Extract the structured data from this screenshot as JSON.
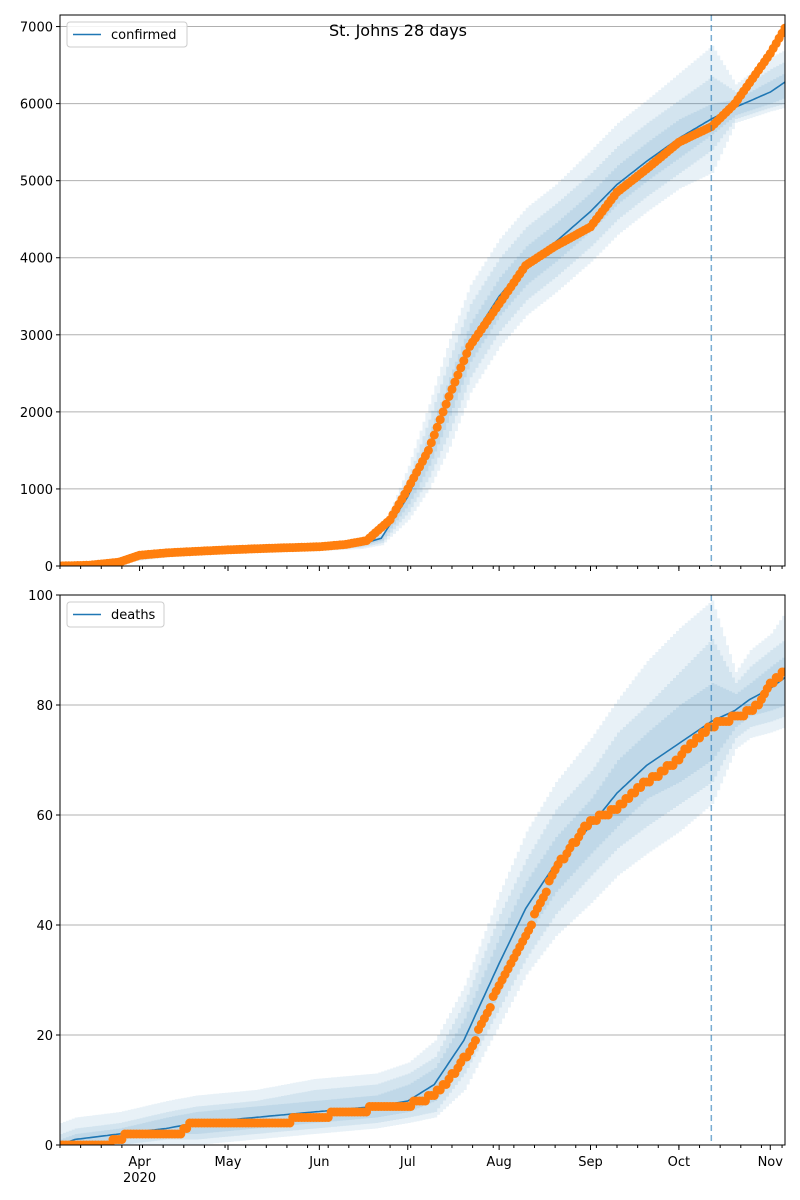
{
  "chart_data": [
    {
      "type": "line",
      "title": "St. Johns 28 days",
      "legend": {
        "entries": [
          "confirmed"
        ],
        "placement": "top-left"
      },
      "xlim": [
        "2020-03-05",
        "2020-11-06"
      ],
      "ylim": [
        0,
        7150
      ],
      "yticks": [
        0,
        1000,
        2000,
        3000,
        4000,
        5000,
        6000,
        7000
      ],
      "grid": "horizontal",
      "colors": {
        "model": "#1f77b4",
        "observed": "#ff7f0e",
        "band": "#1f77b4",
        "forecast_line": "#1f77b4"
      },
      "forecast_start": "2020-10-12",
      "model": {
        "x": [
          "2020-03-05",
          "2020-03-20",
          "2020-04-01",
          "2020-04-15",
          "2020-05-01",
          "2020-05-15",
          "2020-06-01",
          "2020-06-15",
          "2020-06-22",
          "2020-07-01",
          "2020-07-08",
          "2020-07-15",
          "2020-07-22",
          "2020-08-01",
          "2020-08-10",
          "2020-08-20",
          "2020-09-01",
          "2020-09-10",
          "2020-09-20",
          "2020-10-01",
          "2020-10-12",
          "2020-10-20",
          "2020-11-01",
          "2020-11-06"
        ],
        "y": [
          0,
          20,
          100,
          180,
          200,
          220,
          240,
          280,
          360,
          900,
          1500,
          2200,
          2900,
          3500,
          3900,
          4200,
          4600,
          4950,
          5250,
          5550,
          5800,
          5950,
          6150,
          6280
        ],
        "band50": [
          [
            0,
            0
          ],
          [
            15,
            25
          ],
          [
            90,
            110
          ],
          [
            165,
            195
          ],
          [
            185,
            215
          ],
          [
            205,
            235
          ],
          [
            225,
            255
          ],
          [
            260,
            300
          ],
          [
            330,
            390
          ],
          [
            800,
            1000
          ],
          [
            1300,
            1700
          ],
          [
            1950,
            2450
          ],
          [
            2650,
            3150
          ],
          [
            3250,
            3750
          ],
          [
            3650,
            4150
          ],
          [
            3950,
            4450
          ],
          [
            4350,
            4850
          ],
          [
            4700,
            5200
          ],
          [
            5000,
            5500
          ],
          [
            5300,
            5800
          ],
          [
            5600,
            6000
          ],
          [
            5850,
            6050
          ],
          [
            6000,
            6300
          ],
          [
            6080,
            6400
          ]
        ],
        "band80": [
          [
            0,
            0
          ],
          [
            10,
            30
          ],
          [
            80,
            120
          ],
          [
            150,
            210
          ],
          [
            170,
            230
          ],
          [
            190,
            250
          ],
          [
            210,
            270
          ],
          [
            240,
            320
          ],
          [
            300,
            420
          ],
          [
            700,
            1150
          ],
          [
            1150,
            1900
          ],
          [
            1750,
            2700
          ],
          [
            2450,
            3400
          ],
          [
            3050,
            4000
          ],
          [
            3450,
            4400
          ],
          [
            3750,
            4700
          ],
          [
            4150,
            5100
          ],
          [
            4500,
            5450
          ],
          [
            4800,
            5750
          ],
          [
            5100,
            6050
          ],
          [
            5400,
            6350
          ],
          [
            5800,
            6150
          ],
          [
            5950,
            6450
          ],
          [
            6000,
            6550
          ]
        ],
        "band95": [
          [
            0,
            0
          ],
          [
            5,
            35
          ],
          [
            70,
            130
          ],
          [
            135,
            225
          ],
          [
            155,
            245
          ],
          [
            175,
            265
          ],
          [
            195,
            285
          ],
          [
            220,
            340
          ],
          [
            270,
            450
          ],
          [
            600,
            1300
          ],
          [
            1000,
            2100
          ],
          [
            1550,
            2950
          ],
          [
            2250,
            3650
          ],
          [
            2850,
            4250
          ],
          [
            3250,
            4650
          ],
          [
            3550,
            4950
          ],
          [
            3950,
            5400
          ],
          [
            4300,
            5750
          ],
          [
            4600,
            6050
          ],
          [
            4900,
            6400
          ],
          [
            5100,
            6750
          ],
          [
            5750,
            6250
          ],
          [
            5900,
            6600
          ],
          [
            5950,
            6700
          ]
        ]
      },
      "observed": {
        "x": [
          "2020-03-05",
          "2020-03-15",
          "2020-03-25",
          "2020-04-01",
          "2020-04-10",
          "2020-04-20",
          "2020-05-01",
          "2020-05-15",
          "2020-06-01",
          "2020-06-10",
          "2020-06-17",
          "2020-06-25",
          "2020-07-01",
          "2020-07-08",
          "2020-07-15",
          "2020-07-22",
          "2020-08-01",
          "2020-08-10",
          "2020-08-20",
          "2020-09-01",
          "2020-09-10",
          "2020-09-20",
          "2020-10-01",
          "2020-10-12",
          "2020-10-20",
          "2020-11-01",
          "2020-11-06"
        ],
        "y": [
          0,
          10,
          50,
          140,
          170,
          190,
          210,
          230,
          250,
          280,
          330,
          600,
          1000,
          1500,
          2200,
          2850,
          3400,
          3900,
          4150,
          4400,
          4850,
          5150,
          5500,
          5700,
          6000,
          6650,
          6980
        ]
      }
    },
    {
      "type": "line",
      "title": "",
      "legend": {
        "entries": [
          "deaths"
        ],
        "placement": "top-left"
      },
      "xlim": [
        "2020-03-05",
        "2020-11-06"
      ],
      "ylim": [
        0,
        100
      ],
      "yticks": [
        0,
        20,
        40,
        60,
        80,
        100
      ],
      "grid": "horizontal",
      "xticks": [
        "Apr",
        "May",
        "Jun",
        "Jul",
        "Aug",
        "Sep",
        "Oct",
        "Nov"
      ],
      "x_year_label": "2020",
      "forecast_start": "2020-10-12",
      "model": {
        "x": [
          "2020-03-05",
          "2020-03-10",
          "2020-03-25",
          "2020-04-10",
          "2020-04-20",
          "2020-05-10",
          "2020-05-30",
          "2020-06-20",
          "2020-07-01",
          "2020-07-10",
          "2020-07-20",
          "2020-08-01",
          "2020-08-10",
          "2020-08-20",
          "2020-09-01",
          "2020-09-10",
          "2020-09-20",
          "2020-10-01",
          "2020-10-12",
          "2020-10-20",
          "2020-10-25",
          "2020-11-01",
          "2020-11-06"
        ],
        "y": [
          0,
          1,
          2,
          3,
          4,
          5,
          6,
          7,
          8,
          11,
          19,
          33,
          43,
          51,
          58,
          64,
          69,
          73,
          77,
          79,
          81,
          83,
          85
        ],
        "band50": [
          [
            0,
            1
          ],
          [
            0,
            2
          ],
          [
            1,
            3
          ],
          [
            2,
            5
          ],
          [
            2,
            6
          ],
          [
            3,
            7
          ],
          [
            4,
            8
          ],
          [
            5,
            9
          ],
          [
            6,
            11
          ],
          [
            8,
            14
          ],
          [
            15,
            23
          ],
          [
            28,
            38
          ],
          [
            38,
            48
          ],
          [
            46,
            56
          ],
          [
            53,
            63
          ],
          [
            58,
            70
          ],
          [
            63,
            75
          ],
          [
            66,
            80
          ],
          [
            70,
            84
          ],
          [
            76,
            82
          ],
          [
            78,
            84
          ],
          [
            79,
            87
          ],
          [
            80,
            89
          ]
        ],
        "band80": [
          [
            0,
            2
          ],
          [
            0,
            3
          ],
          [
            0,
            4
          ],
          [
            1,
            6
          ],
          [
            1,
            7
          ],
          [
            2,
            8
          ],
          [
            3,
            10
          ],
          [
            4,
            11
          ],
          [
            5,
            13
          ],
          [
            6,
            16
          ],
          [
            13,
            26
          ],
          [
            25,
            42
          ],
          [
            34,
            52
          ],
          [
            42,
            61
          ],
          [
            49,
            68
          ],
          [
            54,
            75
          ],
          [
            58,
            80
          ],
          [
            62,
            86
          ],
          [
            66,
            92
          ],
          [
            74,
            84
          ],
          [
            76,
            87
          ],
          [
            77,
            90
          ],
          [
            78,
            92
          ]
        ],
        "band95": [
          [
            0,
            4
          ],
          [
            0,
            5
          ],
          [
            0,
            6
          ],
          [
            0,
            8
          ],
          [
            0,
            9
          ],
          [
            1,
            10
          ],
          [
            2,
            12
          ],
          [
            3,
            13
          ],
          [
            4,
            15
          ],
          [
            5,
            19
          ],
          [
            10,
            29
          ],
          [
            22,
            46
          ],
          [
            31,
            57
          ],
          [
            38,
            66
          ],
          [
            44,
            74
          ],
          [
            49,
            81
          ],
          [
            53,
            88
          ],
          [
            57,
            94
          ],
          [
            62,
            99
          ],
          [
            72,
            86
          ],
          [
            74,
            90
          ],
          [
            75,
            93
          ],
          [
            76,
            97
          ]
        ]
      },
      "observed": {
        "x": [
          "2020-03-05",
          "2020-03-20",
          "2020-03-25",
          "2020-03-28",
          "2020-04-15",
          "2020-04-18",
          "2020-05-20",
          "2020-05-25",
          "2020-06-15",
          "2020-06-20",
          "2020-07-01",
          "2020-07-05",
          "2020-07-10",
          "2020-07-15",
          "2020-07-22",
          "2020-08-01",
          "2020-08-10",
          "2020-08-20",
          "2020-09-01",
          "2020-09-10",
          "2020-09-20",
          "2020-10-01",
          "2020-10-05",
          "2020-10-12",
          "2020-10-15",
          "2020-10-22",
          "2020-10-28",
          "2020-11-01",
          "2020-11-06"
        ],
        "y": [
          0,
          0,
          1,
          2,
          2,
          4,
          4,
          5,
          6,
          7,
          7,
          8,
          9,
          12,
          17,
          29,
          38,
          50,
          59,
          61,
          66,
          70,
          73,
          76,
          77,
          78,
          80,
          84,
          86
        ]
      }
    }
  ]
}
